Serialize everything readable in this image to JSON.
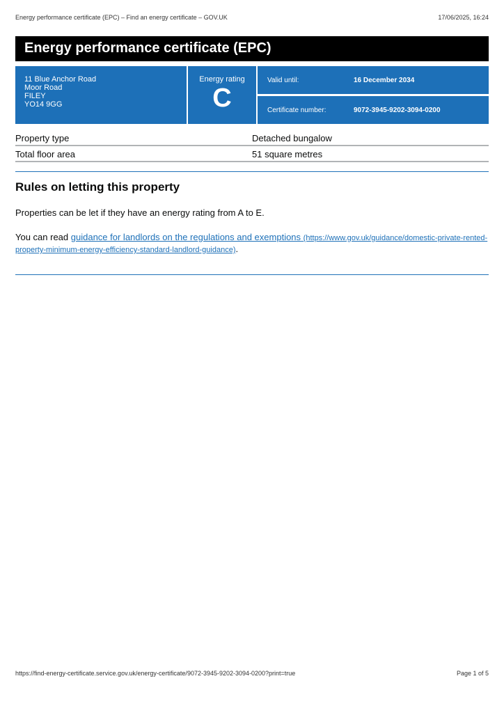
{
  "browser_header": {
    "title": "Energy performance certificate (EPC) – Find an energy certificate – GOV.UK",
    "datetime": "17/06/2025, 16:24"
  },
  "page_title": "Energy performance certificate (EPC)",
  "address": {
    "line1": "11 Blue Anchor Road",
    "line2": "Moor Road",
    "town": "FILEY",
    "postcode": "YO14 9GG"
  },
  "rating": {
    "label": "Energy rating",
    "value": "C"
  },
  "valid_until": {
    "label": "Valid until:",
    "value": "16 December 2034"
  },
  "certificate_number": {
    "label": "Certificate number:",
    "value": "9072-3945-9202-3094-0200"
  },
  "summary": [
    {
      "label": "Property type",
      "value": "Detached bungalow"
    },
    {
      "label": "Total floor area",
      "value": "51 square metres"
    }
  ],
  "letting": {
    "heading": "Rules on letting this property",
    "para1": "Properties can be let if they have an energy rating from A to E.",
    "para2_prefix": "You can read ",
    "link_text": "guidance for landlords on the regulations and exemptions",
    "link_url": "(https://www.gov.uk/guidance/domestic-private-rented-property-minimum-energy-efficiency-standard-landlord-guidance)",
    "para2_suffix": "."
  },
  "footer": {
    "url": "https://find-energy-certificate.service.gov.uk/energy-certificate/9072-3945-9202-3094-0200?print=true",
    "page": "Page 1 of 5"
  },
  "colors": {
    "brand_blue": "#1d70b8",
    "title_bar": "#000000"
  }
}
